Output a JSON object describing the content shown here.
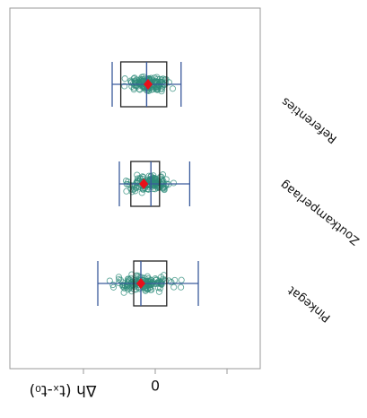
{
  "chart_data": {
    "type": "box",
    "orientation": "horizontal",
    "rotated_180": true,
    "xlabel": "Δh (tₓ-t₀)",
    "xtick_labels": [
      {
        "value": 0,
        "label": "0"
      }
    ],
    "xlim": [
      -0.35,
      0.65
    ],
    "categories": [
      "Pinkegat",
      "Zoutkamperlaag",
      "Referenties"
    ],
    "series": [
      {
        "category": "Pinkegat",
        "whisker_low": -0.3,
        "q1": -0.08,
        "median": 0.1,
        "q3": 0.15,
        "whisker_high": 0.4,
        "mean": 0.1,
        "points_range": [
          -0.34,
          0.46
        ]
      },
      {
        "category": "Zoutkamperlaag",
        "whisker_low": -0.24,
        "q1": -0.03,
        "median": 0.03,
        "q3": 0.03,
        "whisker_high": 0.25,
        "mean": 0.08,
        "points_range": [
          -0.24,
          0.36
        ]
      },
      {
        "category": "Referenties",
        "whisker_low": -0.18,
        "q1": -0.08,
        "median": 0.06,
        "q3": 0.06,
        "whisker_high": 0.3,
        "mean": 0.05,
        "points_range": [
          -0.4,
          0.66
        ]
      }
    ],
    "colors": {
      "box": "#222222",
      "whisker": "#3a5a9c",
      "mean": "#e8101a",
      "points": "#2e8b7a",
      "frame": "#9a9a9a"
    }
  }
}
